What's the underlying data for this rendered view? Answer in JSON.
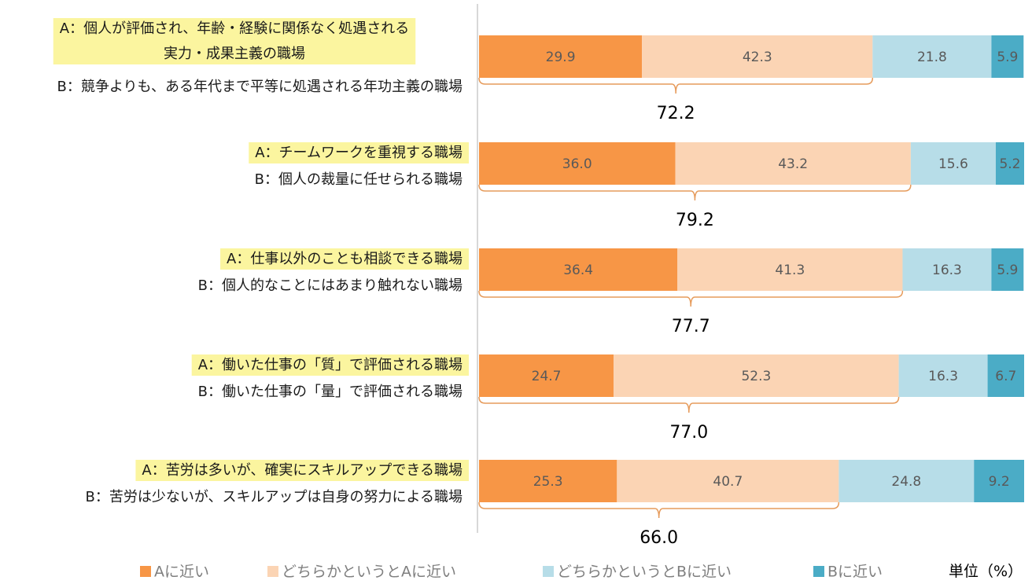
{
  "chart_data": {
    "type": "bar",
    "orientation": "horizontal",
    "stacked": true,
    "unit": "単位（%）",
    "xlim": [
      0,
      100
    ],
    "categories": [
      {
        "a": "A：個人が評価され、年齢・経験に関係なく処遇される",
        "a2": "実力・成果主義の職場",
        "b": "B：競争よりも、ある年代まで平等に処遇される年功主義の職場"
      },
      {
        "a": "A：チームワークを重視する職場",
        "b": "B：個人の裁量に任せられる職場"
      },
      {
        "a": "A：仕事以外のことも相談できる職場",
        "b": "B：個人的なことにはあまり触れない職場"
      },
      {
        "a": "A：働いた仕事の「質」で評価される職場",
        "b": "B：働いた仕事の「量」で評価される職場"
      },
      {
        "a": "A：苦労は多いが、確実にスキルアップできる職場",
        "b": "B：苦労は少ないが、スキルアップは自身の努力による職場"
      }
    ],
    "series": [
      {
        "name": "Aに近い",
        "color": "#f79646",
        "values": [
          29.9,
          36.0,
          36.4,
          24.7,
          25.3
        ],
        "labels": [
          "29.9",
          "36.0",
          "36.4",
          "24.7",
          "25.3"
        ]
      },
      {
        "name": "どちらかというとAに近い",
        "color": "#fbd4b4",
        "values": [
          42.3,
          43.2,
          41.3,
          52.3,
          40.7
        ],
        "labels": [
          "42.3",
          "43.2",
          "41.3",
          "52.3",
          "40.7"
        ]
      },
      {
        "name": "どちらかというとBに近い",
        "color": "#b7dde8",
        "values": [
          21.8,
          15.6,
          16.3,
          16.3,
          24.8
        ],
        "labels": [
          "21.8",
          "15.6",
          "16.3",
          "16.3",
          "24.8"
        ]
      },
      {
        "name": "Bに近い",
        "color": "#4bacc6",
        "values": [
          5.9,
          5.2,
          5.9,
          6.7,
          9.2
        ],
        "labels": [
          "5.9",
          "5.2",
          "5.9",
          "6.7",
          "9.2"
        ]
      }
    ],
    "totals_a": [
      "72.2",
      "79.2",
      "77.7",
      "77.0",
      "66.0"
    ],
    "highlight_color": "#fbf59f",
    "bracket_color": "#e69b5b"
  }
}
